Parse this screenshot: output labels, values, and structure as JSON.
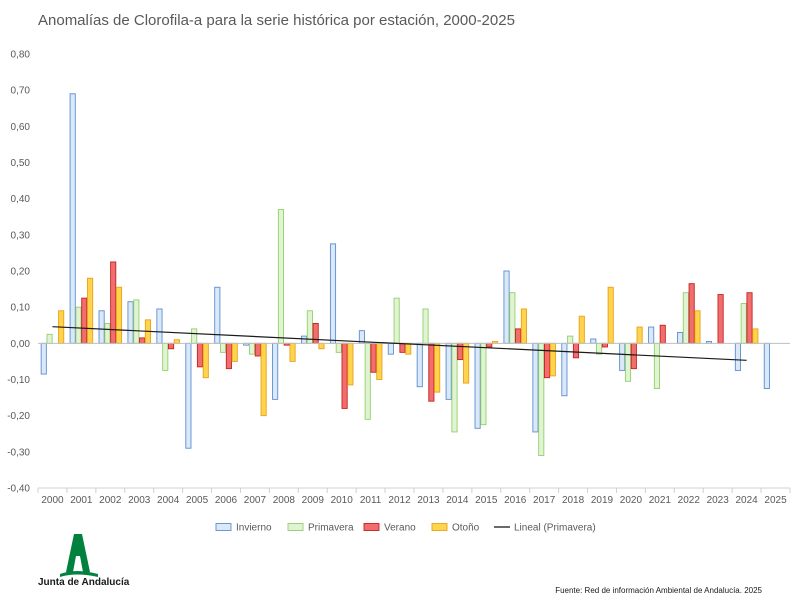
{
  "chart_data": {
    "type": "bar",
    "title": "Anomalías de Clorofila-a para la serie histórica por estación, 2000-2025",
    "categories": [
      "2000",
      "2001",
      "2002",
      "2003",
      "2004",
      "2005",
      "2006",
      "2007",
      "2008",
      "2009",
      "2010",
      "2011",
      "2012",
      "2013",
      "2014",
      "2015",
      "2016",
      "2017",
      "2018",
      "2019",
      "2020",
      "2021",
      "2022",
      "2023",
      "2024",
      "2025"
    ],
    "ylim": [
      -0.4,
      0.8
    ],
    "yticks": [
      "-0,40",
      "-0,30",
      "-0,20",
      "-0,10",
      "0,00",
      "0,10",
      "0,20",
      "0,30",
      "0,40",
      "0,50",
      "0,60",
      "0,70",
      "0,80"
    ],
    "ytick_values": [
      -0.4,
      -0.3,
      -0.2,
      -0.1,
      0,
      0.1,
      0.2,
      0.3,
      0.4,
      0.5,
      0.6,
      0.7,
      0.8
    ],
    "grid": false,
    "legend_position": "bottom",
    "series": [
      {
        "name": "Invierno",
        "fill": "#dbe8f7",
        "stroke": "#5b8fd1",
        "values": [
          -0.085,
          0.69,
          0.09,
          0.115,
          0.095,
          -0.29,
          0.155,
          -0.005,
          -0.155,
          0.02,
          0.275,
          0.035,
          -0.03,
          -0.12,
          -0.155,
          -0.235,
          0.2,
          -0.245,
          -0.145,
          0.012,
          -0.075,
          0.045,
          0.03,
          0.005,
          -0.075,
          -0.125
        ]
      },
      {
        "name": "Primavera",
        "fill": "#e2f3d3",
        "stroke": "#8fd16a",
        "values": [
          0.025,
          0.1,
          0.055,
          0.12,
          -0.075,
          0.04,
          -0.025,
          -0.03,
          0.37,
          0.09,
          -0.025,
          -0.21,
          0.125,
          0.095,
          -0.245,
          -0.225,
          0.14,
          -0.31,
          0.02,
          -0.03,
          -0.105,
          -0.125,
          0.14,
          0.0,
          0.11,
          0.0
        ]
      },
      {
        "name": "Verano",
        "fill": "#f26d6d",
        "stroke": "#c42323",
        "values": [
          0.0,
          0.125,
          0.225,
          0.015,
          -0.015,
          -0.065,
          -0.07,
          -0.035,
          -0.005,
          0.055,
          -0.18,
          -0.08,
          -0.025,
          -0.16,
          -0.045,
          -0.01,
          0.04,
          -0.095,
          -0.04,
          -0.01,
          -0.07,
          0.05,
          0.165,
          0.135,
          0.14,
          0.0
        ]
      },
      {
        "name": "Otoño",
        "fill": "#ffd34d",
        "stroke": "#e8a317",
        "values": [
          0.09,
          0.18,
          0.155,
          0.065,
          0.01,
          -0.095,
          -0.05,
          -0.2,
          -0.05,
          -0.015,
          -0.115,
          -0.1,
          -0.03,
          -0.135,
          -0.11,
          0.005,
          0.095,
          -0.09,
          0.075,
          0.155,
          0.045,
          0.0,
          0.09,
          0.0,
          0.04,
          0.0
        ]
      }
    ],
    "trendline": {
      "name": "Lineal (Primavera)",
      "color": "#1a1a1a",
      "start": 0.046,
      "end": -0.047
    }
  },
  "source": "Fuente: Red de información Ambiental de Andalucía. 2025",
  "logo": {
    "text": "Junta de Andalucía",
    "color": "#00813e"
  }
}
